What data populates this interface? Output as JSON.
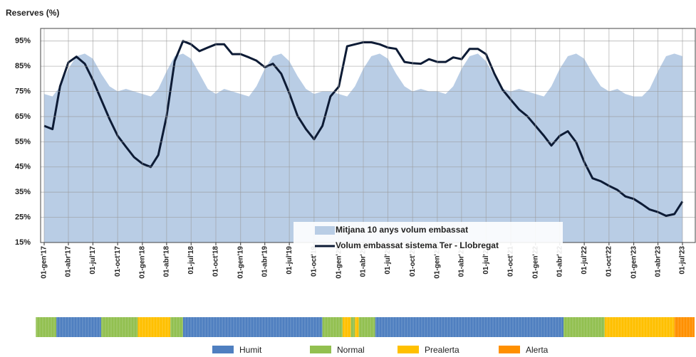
{
  "chart_data": {
    "type": "line",
    "title": "Reserves (%)",
    "x": [
      "2017-01-01",
      "2017-02-01",
      "2017-03-01",
      "2017-04-01",
      "2017-05-01",
      "2017-06-01",
      "2017-07-01",
      "2017-08-01",
      "2017-09-01",
      "2017-10-01",
      "2017-11-01",
      "2017-12-01",
      "2018-01-01",
      "2018-02-01",
      "2018-03-01",
      "2018-04-01",
      "2018-05-01",
      "2018-06-01",
      "2018-07-01",
      "2018-08-01",
      "2018-09-01",
      "2018-10-01",
      "2018-11-01",
      "2018-12-01",
      "2019-01-01",
      "2019-02-01",
      "2019-03-01",
      "2019-04-01",
      "2019-05-01",
      "2019-06-01",
      "2019-07-01",
      "2019-08-01",
      "2019-09-01",
      "2019-10-01",
      "2019-11-01",
      "2019-12-01",
      "2020-01-01",
      "2020-02-01",
      "2020-03-01",
      "2020-04-01",
      "2020-05-01",
      "2020-06-01",
      "2020-07-01",
      "2020-08-01",
      "2020-09-01",
      "2020-10-01",
      "2020-11-01",
      "2020-12-01",
      "2021-01-01",
      "2021-02-01",
      "2021-03-01",
      "2021-04-01",
      "2021-05-01",
      "2021-06-01",
      "2021-07-01",
      "2021-08-01",
      "2021-09-01",
      "2021-10-01",
      "2021-11-01",
      "2021-12-01",
      "2022-01-01",
      "2022-02-01",
      "2022-03-01",
      "2022-04-01",
      "2022-05-01",
      "2022-06-01",
      "2022-07-01",
      "2022-08-01",
      "2022-09-01",
      "2022-10-01",
      "2022-11-01",
      "2022-12-01",
      "2023-01-01",
      "2023-02-01",
      "2023-03-01",
      "2023-04-01",
      "2023-05-01",
      "2023-06-01",
      "2023-07-01"
    ],
    "series": [
      {
        "name": "Mitjana 10 anys volum embassat",
        "color": "#b9cde5",
        "fill": true,
        "values": [
          74,
          73,
          77,
          84,
          89,
          90,
          88,
          82,
          77,
          75,
          76,
          75,
          74,
          73,
          76,
          83,
          89,
          90,
          88,
          82,
          76,
          74,
          76,
          75,
          74,
          73,
          77,
          84,
          89,
          90,
          87,
          81,
          76,
          74,
          75,
          75,
          74,
          73,
          77,
          84,
          89,
          90,
          88,
          82,
          77,
          75,
          76,
          75,
          75,
          74,
          77,
          84,
          89,
          90,
          87,
          81,
          76,
          75,
          76,
          75,
          74,
          73,
          77,
          84,
          89,
          90,
          88,
          82,
          77,
          75,
          76,
          74,
          73,
          73,
          76,
          83,
          89,
          90,
          89
        ]
      },
      {
        "name": "Volum embassat sistema Ter - Llobregat",
        "color": "#0d1b35",
        "fill": false,
        "values": [
          61.3,
          60,
          77,
          86.5,
          88.8,
          86,
          79.5,
          71.7,
          64,
          57.4,
          53,
          48.9,
          46.3,
          45,
          49.7,
          65.2,
          87,
          95,
          93.7,
          91,
          92.4,
          93.7,
          93.7,
          89.8,
          89.8,
          88.5,
          87.2,
          84.6,
          86,
          82,
          74.3,
          65.2,
          60,
          56,
          61.3,
          73,
          76.9,
          92.9,
          93.7,
          94.5,
          94.5,
          93.7,
          92.4,
          91.9,
          86.7,
          86.2,
          86,
          87.8,
          86.7,
          86.7,
          88.5,
          87.8,
          91.9,
          91.9,
          89.8,
          82,
          75.6,
          71.7,
          67.8,
          65.2,
          61.3,
          57.4,
          53.5,
          57.4,
          59.2,
          54.8,
          47,
          40.5,
          39.3,
          37.5,
          35.9,
          33.3,
          32.3,
          30.2,
          28.1,
          27.1,
          25.6,
          26.3,
          31.3
        ]
      }
    ],
    "xlim": [
      "2017-01-01",
      "2023-07-01"
    ],
    "xticks": [
      {
        "value": "2017-01-01",
        "label": "01-gen'17"
      },
      {
        "value": "2017-04-01",
        "label": "01-abr'17"
      },
      {
        "value": "2017-07-01",
        "label": "01-jul'17"
      },
      {
        "value": "2017-10-01",
        "label": "01-oct'17"
      },
      {
        "value": "2018-01-01",
        "label": "01-gen'18"
      },
      {
        "value": "2018-04-01",
        "label": "01-abr'18"
      },
      {
        "value": "2018-07-01",
        "label": "01-jul'18"
      },
      {
        "value": "2018-10-01",
        "label": "01-oct'18"
      },
      {
        "value": "2019-01-01",
        "label": "01-gen'19"
      },
      {
        "value": "2019-04-01",
        "label": "01-abr'19"
      },
      {
        "value": "2019-07-01",
        "label": "01-jul'19"
      },
      {
        "value": "2019-10-01",
        "label": "01-oct'19"
      },
      {
        "value": "2020-01-01",
        "label": "01-gen'20"
      },
      {
        "value": "2020-04-01",
        "label": "01-abr'20"
      },
      {
        "value": "2020-07-01",
        "label": "01-jul'20"
      },
      {
        "value": "2020-10-01",
        "label": "01-oct'20"
      },
      {
        "value": "2021-01-01",
        "label": "01-gen'21"
      },
      {
        "value": "2021-04-01",
        "label": "01-abr'21"
      },
      {
        "value": "2021-07-01",
        "label": "01-jul'21"
      },
      {
        "value": "2021-10-01",
        "label": "01-oct'21"
      },
      {
        "value": "2022-01-01",
        "label": "01-gen'22"
      },
      {
        "value": "2022-04-01",
        "label": "01-abr'22"
      },
      {
        "value": "2022-07-01",
        "label": "01-jul'22"
      },
      {
        "value": "2022-10-01",
        "label": "01-oct'22"
      },
      {
        "value": "2023-01-01",
        "label": "01-gen'23"
      },
      {
        "value": "2023-04-01",
        "label": "01-abr'23"
      },
      {
        "value": "2023-07-01",
        "label": "01-jul'23"
      }
    ],
    "ylim": [
      15,
      100
    ],
    "yticks": [
      {
        "value": 15,
        "label": "15%"
      },
      {
        "value": 25,
        "label": "25%"
      },
      {
        "value": 35,
        "label": "35%"
      },
      {
        "value": 45,
        "label": "45%"
      },
      {
        "value": 55,
        "label": "55%"
      },
      {
        "value": 65,
        "label": "65%"
      },
      {
        "value": 75,
        "label": "75%"
      },
      {
        "value": 85,
        "label": "85%"
      },
      {
        "value": 95,
        "label": "95%"
      }
    ],
    "grid": true,
    "legend": "lower right",
    "status_legend": [
      {
        "name": "Humit",
        "color": "#4f7fc0"
      },
      {
        "name": "Normal",
        "color": "#92c050"
      },
      {
        "name": "Prealerta",
        "color": "#ffc000"
      },
      {
        "name": "Alerta",
        "color": "#ff9000"
      }
    ],
    "status_segments": [
      {
        "start": "2016-12-01",
        "end": "2017-02-15",
        "state": "Normal"
      },
      {
        "start": "2017-02-15",
        "end": "2017-08-01",
        "state": "Humit"
      },
      {
        "start": "2017-08-01",
        "end": "2017-12-15",
        "state": "Normal"
      },
      {
        "start": "2017-12-15",
        "end": "2018-04-15",
        "state": "Prealerta"
      },
      {
        "start": "2018-04-15",
        "end": "2018-06-01",
        "state": "Normal"
      },
      {
        "start": "2018-06-01",
        "end": "2019-11-01",
        "state": "Humit"
      },
      {
        "start": "2019-11-01",
        "end": "2020-01-15",
        "state": "Normal"
      },
      {
        "start": "2020-01-15",
        "end": "2020-02-15",
        "state": "Prealerta"
      },
      {
        "start": "2020-02-15",
        "end": "2020-03-01",
        "state": "Normal"
      },
      {
        "start": "2020-03-01",
        "end": "2020-03-15",
        "state": "Prealerta"
      },
      {
        "start": "2020-03-15",
        "end": "2020-05-15",
        "state": "Normal"
      },
      {
        "start": "2020-05-15",
        "end": "2022-04-15",
        "state": "Humit"
      },
      {
        "start": "2022-04-15",
        "end": "2022-09-15",
        "state": "Normal"
      },
      {
        "start": "2022-09-15",
        "end": "2023-06-01",
        "state": "Prealerta"
      },
      {
        "start": "2023-06-01",
        "end": "2023-08-15",
        "state": "Alerta"
      }
    ]
  }
}
